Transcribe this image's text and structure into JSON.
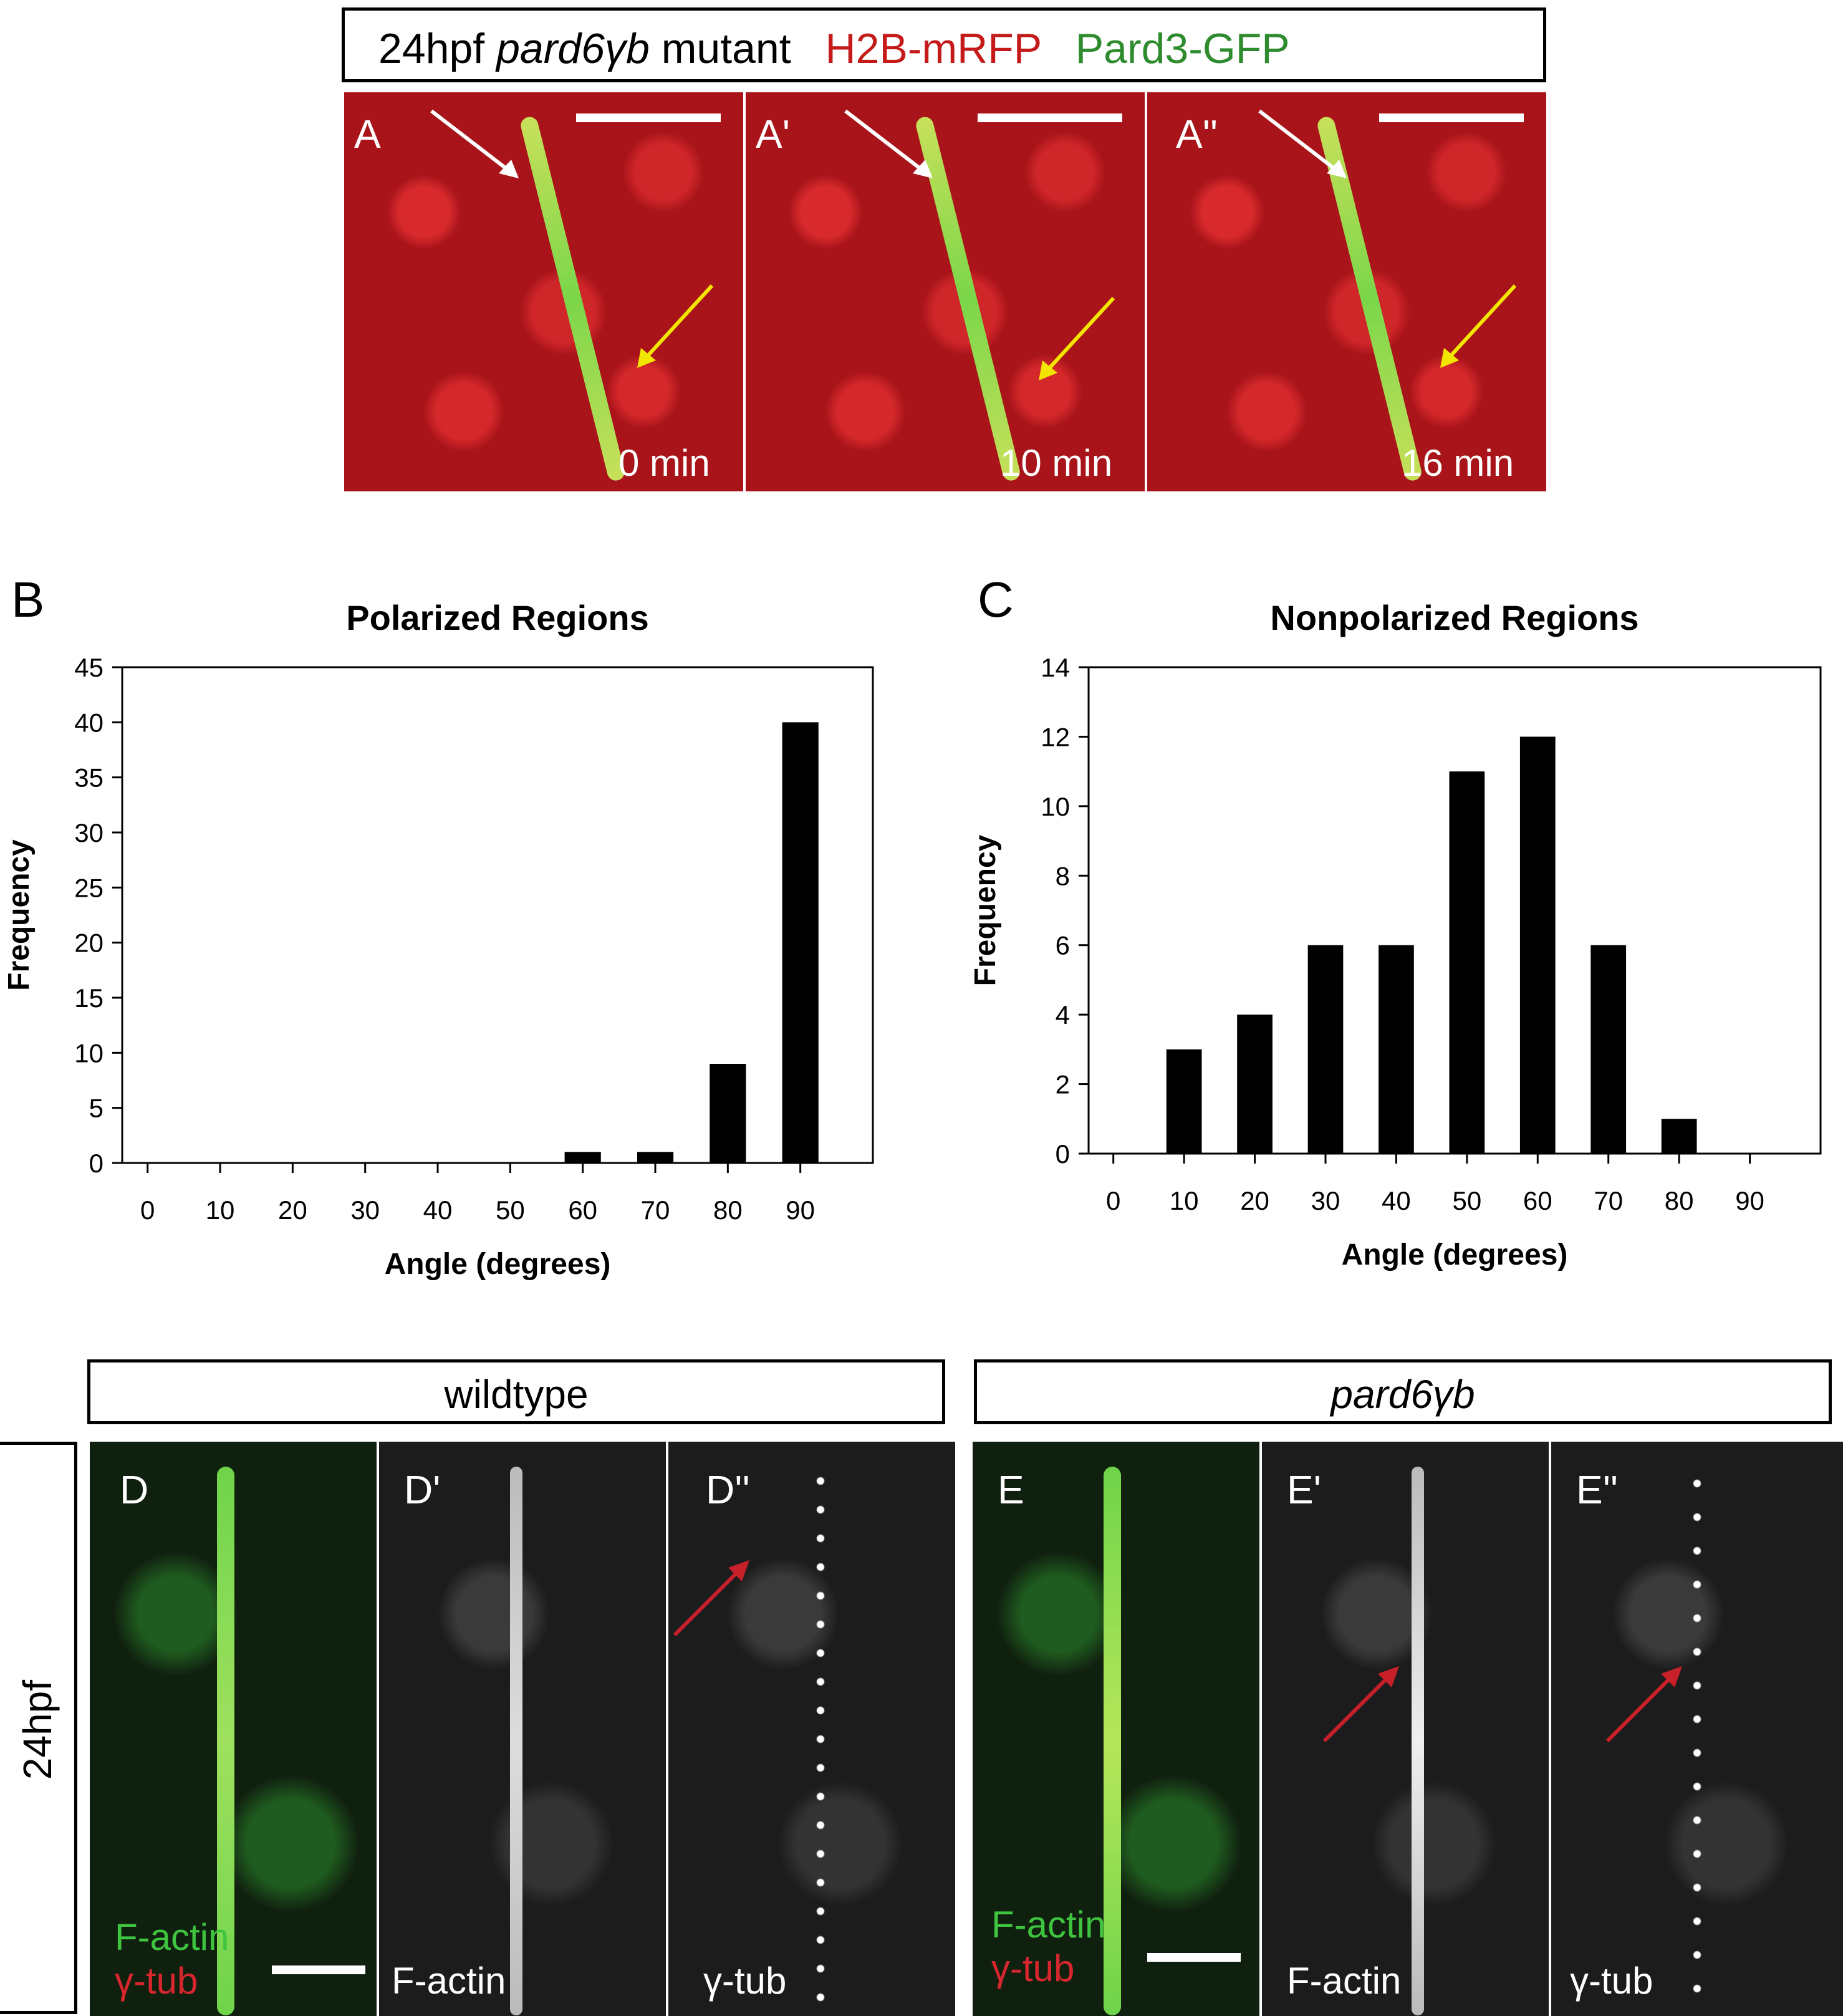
{
  "panelA": {
    "header": {
      "prefix": "24hpf",
      "gene": "pard6γb",
      "suffix": "mutant",
      "red_label": "H2B-mRFP",
      "green_label": "Pard3-GFP"
    },
    "frames": [
      {
        "label": "A",
        "time": "0 min"
      },
      {
        "label": "A'",
        "time": "10 min"
      },
      {
        "label": "A''",
        "time": "16 min"
      }
    ]
  },
  "chart_data": [
    {
      "panel": "B",
      "type": "bar",
      "title": "Polarized Regions",
      "xlabel": "Angle (degrees)",
      "ylabel": "Frequency",
      "categories": [
        "0",
        "10",
        "20",
        "30",
        "40",
        "50",
        "60",
        "70",
        "80",
        "90"
      ],
      "values": [
        0,
        0,
        0,
        0,
        0,
        0,
        1,
        1,
        9,
        40
      ],
      "ylim": [
        0,
        45
      ],
      "yticks": [
        "0",
        "5",
        "10",
        "15",
        "20",
        "25",
        "30",
        "35",
        "40",
        "45"
      ],
      "grid": false
    },
    {
      "panel": "C",
      "type": "bar",
      "title": "Nonpolarized Regions",
      "xlabel": "Angle (degrees)",
      "ylabel": "Frequency",
      "categories": [
        "0",
        "10",
        "20",
        "30",
        "40",
        "50",
        "60",
        "70",
        "80",
        "90"
      ],
      "values": [
        0,
        3,
        4,
        6,
        6,
        11,
        12,
        6,
        1,
        0
      ],
      "ylim": [
        0,
        14
      ],
      "yticks": [
        "0",
        "2",
        "4",
        "6",
        "8",
        "10",
        "12",
        "14"
      ],
      "grid": false
    }
  ],
  "panelDE": {
    "row_label": "24hpf",
    "wildtype_header": "wildtype",
    "mutant_header": "pard6γb",
    "panels": [
      {
        "label": "D",
        "text1": "F-actin",
        "text2": "γ-tub"
      },
      {
        "label": "D'",
        "text1": "F-actin"
      },
      {
        "label": "D''",
        "text1": "γ-tub"
      },
      {
        "label": "E",
        "text1": "F-actin",
        "text2": "γ-tub"
      },
      {
        "label": "E'",
        "text1": "F-actin"
      },
      {
        "label": "E''",
        "text1": "γ-tub"
      }
    ]
  },
  "colors": {
    "red": "#c41a1a",
    "green": "#2e8b2e",
    "arrow_white": "#ffffff",
    "arrow_yellow": "#f2e600",
    "arrow_red": "#c8202a"
  }
}
